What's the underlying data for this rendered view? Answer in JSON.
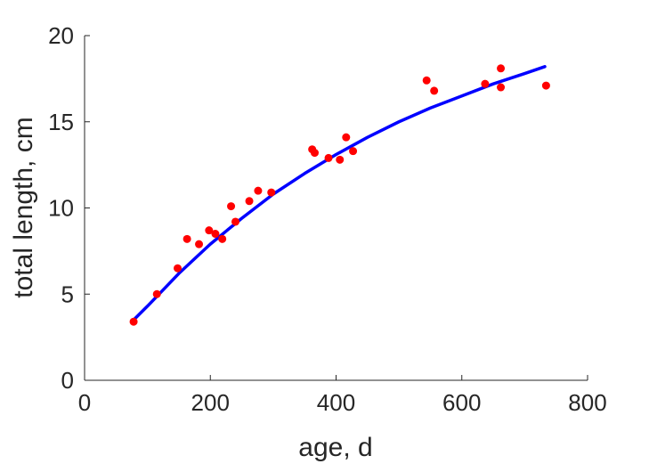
{
  "chart_data": {
    "type": "scatter",
    "xlabel": "age, d",
    "ylabel": "total length, cm",
    "xlim": [
      0,
      800
    ],
    "ylim": [
      0,
      20
    ],
    "x_ticks": [
      0,
      200,
      400,
      600,
      800
    ],
    "y_ticks": [
      0,
      5,
      10,
      15,
      20
    ],
    "x_tick_labels": [
      "0",
      "200",
      "400",
      "600",
      "800"
    ],
    "y_tick_labels": [
      "0",
      "5",
      "10",
      "15",
      "20"
    ],
    "grid": false,
    "legend": "none",
    "colors": {
      "points": "#ff0000",
      "fit_line": "#0000ff",
      "axis": "#262626"
    },
    "series": [
      {
        "kind": "points",
        "x": [
          78,
          115,
          148,
          163,
          182,
          198,
          208,
          219,
          233,
          240,
          262,
          276,
          297,
          362,
          366,
          388,
          406,
          416,
          427,
          544,
          556,
          637,
          662,
          662,
          734
        ],
        "y": [
          3.4,
          5.0,
          6.5,
          8.2,
          7.9,
          8.7,
          8.5,
          8.2,
          10.1,
          9.2,
          10.4,
          11.0,
          10.9,
          13.4,
          13.2,
          12.9,
          12.8,
          14.1,
          13.3,
          17.4,
          16.8,
          17.2,
          18.1,
          17.0,
          17.1
        ]
      },
      {
        "kind": "fit-line",
        "x": [
          78,
          100,
          150,
          200,
          250,
          300,
          350,
          400,
          450,
          500,
          550,
          600,
          650,
          700,
          732
        ],
        "y": [
          3.5,
          4.3,
          6.2,
          7.9,
          9.4,
          10.8,
          12.0,
          13.1,
          14.1,
          15.0,
          15.8,
          16.5,
          17.2,
          17.8,
          18.2
        ]
      }
    ]
  }
}
